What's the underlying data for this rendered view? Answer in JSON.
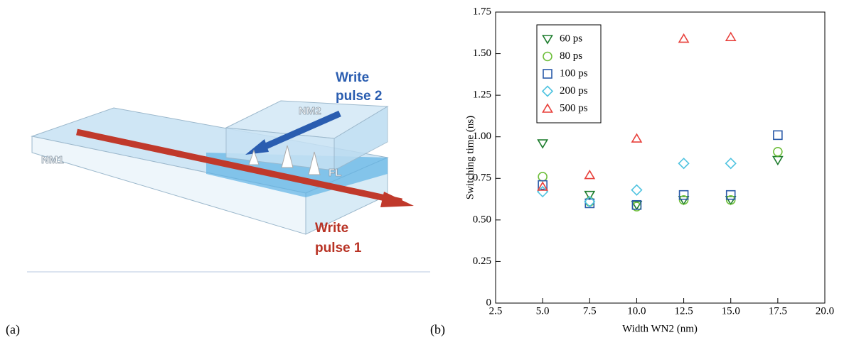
{
  "panel_labels": [
    "(a)",
    "(b)"
  ],
  "diagram": {
    "nm1": "NM1",
    "nm2": "NM2",
    "fl": "FL",
    "write_pulse_2": [
      "Write",
      "pulse 2"
    ],
    "write_pulse_1": [
      "Write",
      "pulse 1"
    ]
  },
  "chart_data": {
    "type": "scatter",
    "x_label": "Width WN2 (nm)",
    "y_label": "Switching time (ns)",
    "xlim": [
      2.5,
      20.0
    ],
    "xticks": [
      2.5,
      {
        "value": 5,
        "label": "5.0"
      },
      7.5,
      {
        "value": 10,
        "label": "10.0"
      },
      12.5,
      {
        "value": 15,
        "label": "15.0"
      },
      17.5,
      {
        "value": 20,
        "label": "20.0"
      }
    ],
    "ylim": [
      0,
      1.75
    ],
    "yticks": [
      0,
      0.25,
      {
        "value": 0.5,
        "label": "0.50"
      },
      0.75,
      {
        "value": 1,
        "label": "1.00"
      },
      1.25,
      {
        "value": 1.5,
        "label": "1.50"
      },
      1.75
    ],
    "legend": "upper left",
    "series": [
      {
        "name": "60 ps",
        "color": "#1e7d2e",
        "marker": "triangle-down",
        "x": [
          5,
          7.5,
          10,
          12.5,
          15,
          17.5
        ],
        "values": [
          0.96,
          0.65,
          0.59,
          0.62,
          0.62,
          0.86
        ]
      },
      {
        "name": "80 ps",
        "color": "#6fbf3c",
        "marker": "circle",
        "x": [
          5,
          7.5,
          10,
          12.5,
          15,
          17.5
        ],
        "values": [
          0.76,
          0.61,
          0.58,
          0.62,
          0.62,
          0.91
        ]
      },
      {
        "name": "100 ps",
        "color": "#2a5aa8",
        "marker": "square",
        "x": [
          5,
          7.5,
          10,
          12.5,
          15,
          17.5
        ],
        "values": [
          0.71,
          0.6,
          0.59,
          0.65,
          0.65,
          1.01
        ]
      },
      {
        "name": "200 ps",
        "color": "#4fc3e0",
        "marker": "diamond",
        "x": [
          5,
          7.5,
          10,
          12.5,
          15
        ],
        "values": [
          0.67,
          0.61,
          0.68,
          0.84,
          0.84
        ]
      },
      {
        "name": "500 ps",
        "color": "#e8413c",
        "marker": "triangle-up",
        "x": [
          5,
          7.5,
          10,
          12.5,
          15
        ],
        "values": [
          0.7,
          0.77,
          0.99,
          1.59,
          1.6
        ]
      }
    ]
  }
}
